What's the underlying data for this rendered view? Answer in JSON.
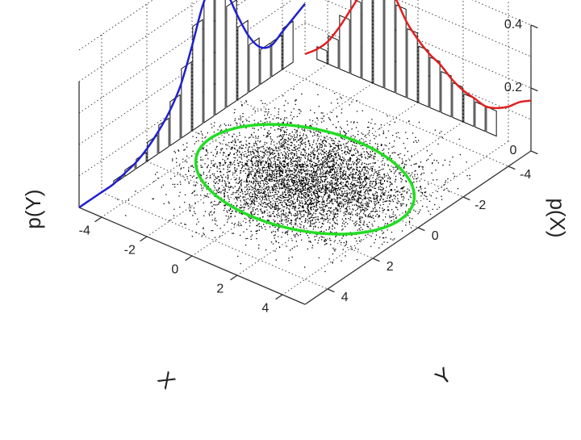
{
  "chart_data": {
    "type": "scatter",
    "title": "",
    "axes": {
      "x": {
        "label": "X",
        "range": [
          -5,
          5
        ],
        "ticks": [
          "-4",
          "-2",
          "0",
          "2",
          "4"
        ]
      },
      "y": {
        "label": "Y",
        "range": [
          -5,
          5
        ],
        "ticks": [
          "-4",
          "-2",
          "0",
          "2",
          "4"
        ]
      },
      "pY": {
        "label": "p(Y)",
        "range": [
          0,
          0.4
        ],
        "ticks": [
          "0",
          "0.2",
          "0.4"
        ]
      },
      "pX": {
        "label": "p(X)"
      }
    },
    "grid": true,
    "scatter": {
      "color": "#000000",
      "count": 5000,
      "mean": [
        0,
        0
      ],
      "cov": [
        [
          2.0,
          0.0
        ],
        [
          0.0,
          4.0
        ]
      ]
    },
    "ellipse": {
      "color": "#22dd22",
      "center": [
        0,
        0
      ],
      "semi_axis_x": 2.4,
      "semi_axis_y": 4.2
    },
    "marginal_pY": {
      "color": "#e02020",
      "y": [
        -5.0,
        -4.5,
        -4.0,
        -3.5,
        -3.0,
        -2.5,
        -2.0,
        -1.5,
        -1.0,
        -0.5,
        0.0,
        0.5,
        1.0,
        1.5,
        2.0,
        2.5,
        3.0,
        3.5,
        4.0,
        4.5,
        5.0
      ],
      "density": [
        0.0,
        0.03,
        0.07,
        0.13,
        0.2,
        0.27,
        0.32,
        0.33,
        0.3,
        0.24,
        0.2,
        0.17,
        0.15,
        0.12,
        0.1,
        0.09,
        0.08,
        0.09,
        0.11,
        0.14,
        0.16
      ],
      "hist_y": [
        -4.25,
        -3.75,
        -3.25,
        -2.75,
        -2.25,
        -1.75,
        -1.25,
        -0.75,
        -0.25,
        0.25,
        0.75,
        1.25,
        1.75,
        2.25,
        2.75,
        3.25
      ],
      "hist_density": [
        0.04,
        0.09,
        0.17,
        0.24,
        0.3,
        0.33,
        0.32,
        0.28,
        0.22,
        0.18,
        0.16,
        0.13,
        0.11,
        0.09,
        0.08,
        0.08
      ]
    },
    "marginal_pX": {
      "color": "#2020d0",
      "x": [
        -5.0,
        -4.5,
        -4.0,
        -3.5,
        -3.0,
        -2.5,
        -2.0,
        -1.5,
        -1.0,
        -0.5,
        0.0,
        0.5,
        1.0,
        1.5,
        2.0,
        2.5,
        3.0,
        3.5,
        4.0,
        4.5,
        5.0
      ],
      "density": [
        0.16,
        0.14,
        0.12,
        0.1,
        0.12,
        0.18,
        0.27,
        0.37,
        0.43,
        0.38,
        0.27,
        0.17,
        0.11,
        0.07,
        0.04,
        0.02,
        0.01,
        0.0,
        0.0,
        0.0,
        0.0
      ],
      "hist_x": [
        -4.25,
        -3.75,
        -3.25,
        -2.75,
        -2.25,
        -1.75,
        -1.25,
        -0.75,
        -0.25,
        0.25,
        0.75,
        1.25,
        1.75,
        2.25,
        2.75,
        3.25,
        3.75
      ],
      "hist_density": [
        0.13,
        0.11,
        0.11,
        0.15,
        0.23,
        0.32,
        0.4,
        0.42,
        0.33,
        0.22,
        0.14,
        0.09,
        0.06,
        0.03,
        0.02,
        0.01,
        0.0
      ]
    }
  }
}
